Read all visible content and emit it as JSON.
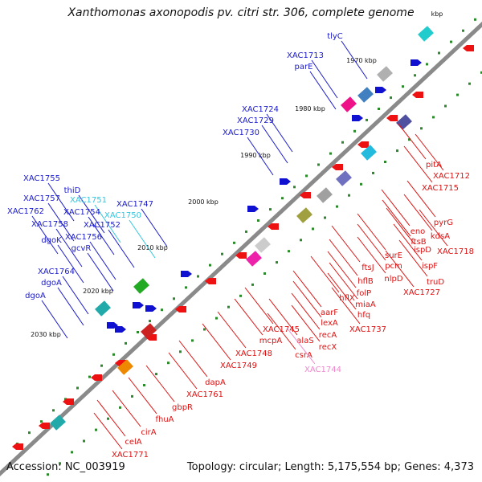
{
  "title": "Xanthomonas axonopodis pv. citri str. 306, complete genome",
  "footer": {
    "accession": "Accession: NC_003919",
    "stats": "Topology: circular; Length: 5,175,554 bp; Genes: 4,373"
  },
  "colors": {
    "backbone": "#8a8a8a",
    "forward_label": "#1a1acc",
    "reverse_label": "#dd1111",
    "highlight_cyan": "#33c6dd",
    "highlight_pink": "#ee88cc",
    "tick": "#2a8a2a",
    "gc_dot": "#2a8a2a"
  },
  "ticks": [
    "1970 kbp",
    "1980 kbp",
    "1990 kbp",
    "2000 kbp",
    "2010 kbp",
    "2020 kbp",
    "2030 kbp",
    "kbp"
  ],
  "upper_labels": [
    "tlyC",
    "XAC1713",
    "parE",
    "XAC1724",
    "XAC1729",
    "XAC1730",
    "XAC1755",
    "thiD",
    "XAC1757",
    "XAC1751",
    "XAC1747",
    "XAC1762",
    "XAC1754",
    "XAC1750",
    "XAC1758",
    "XAC1752",
    "dgoK",
    "XAC1756",
    "gcvR",
    "XAC1764",
    "dgoA",
    "dgoA"
  ],
  "lower_labels": [
    "pitA",
    "XAC1712",
    "XAC1715",
    "pyrG",
    "eno",
    "kdsA",
    "ftsB",
    "ispD",
    "XAC1718",
    "ispF",
    "surE",
    "truD",
    "pcm",
    "ftsJ",
    "nlpD",
    "XAC1727",
    "hflB",
    "folP",
    "hflX",
    "miaA",
    "hfq",
    "aarF",
    "lexA",
    "XAC1737",
    "recA",
    "recX",
    "alaS",
    "XAC1745",
    "mcpA",
    "csrA",
    "XAC1748",
    "XAC1744",
    "XAC1749",
    "dapA",
    "XAC1761",
    "gbpR",
    "fhuA",
    "cirA",
    "celA",
    "XAC1771"
  ]
}
